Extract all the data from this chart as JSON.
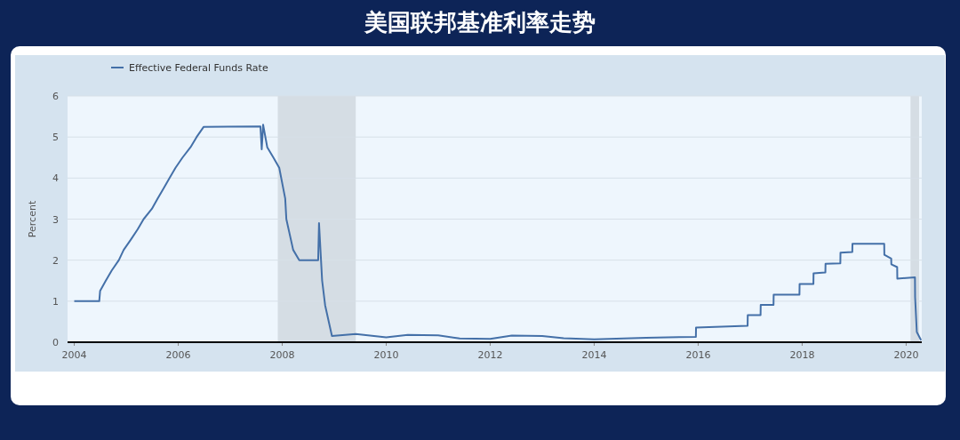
{
  "chart_data": {
    "type": "line",
    "title": "美国联邦基准利率走势",
    "ylabel": "Percent",
    "xlim": [
      "2003-11-15",
      "2020-04-20"
    ],
    "xticks": [
      "2004",
      "2006",
      "2008",
      "2010",
      "2012",
      "2014",
      "2016",
      "2018",
      "2020"
    ],
    "ylim": [
      0,
      6
    ],
    "yticks": [
      0,
      1,
      2,
      3,
      4,
      5,
      6
    ],
    "grid": "y",
    "legend": "top left",
    "bands": [
      {
        "axis": "x",
        "from": "2007-12-01",
        "to": "2009-06-01",
        "color": "#d5dde4"
      },
      {
        "axis": "x",
        "from": "2020-02-01",
        "to": "2020-04-01",
        "color": "#d5dde4"
      }
    ],
    "series": [
      {
        "name": "Effective Federal Funds Rate",
        "color": "#4470a8",
        "x": [
          "2004-01-01",
          "2004-06-25",
          "2004-07-01",
          "2004-08-10",
          "2004-09-21",
          "2004-11-10",
          "2004-12-14",
          "2005-02-02",
          "2005-03-22",
          "2005-05-03",
          "2005-06-30",
          "2005-08-09",
          "2005-09-20",
          "2005-11-01",
          "2005-12-13",
          "2006-01-31",
          "2006-03-28",
          "2006-05-10",
          "2006-06-29",
          "2007-08-01",
          "2007-08-10",
          "2007-08-20",
          "2007-09-18",
          "2007-10-31",
          "2007-12-11",
          "2008-01-22",
          "2008-01-30",
          "2008-03-18",
          "2008-04-30",
          "2008-09-10",
          "2008-09-16",
          "2008-10-08",
          "2008-10-29",
          "2008-12-16",
          "2009-06-01",
          "2010-01-01",
          "2010-06-01",
          "2011-01-01",
          "2011-06-01",
          "2012-01-01",
          "2012-06-01",
          "2013-01-01",
          "2013-06-01",
          "2014-01-01",
          "2015-01-01",
          "2015-12-16",
          "2015-12-17",
          "2016-12-14",
          "2016-12-15",
          "2017-03-15",
          "2017-03-16",
          "2017-06-14",
          "2017-06-15",
          "2017-12-13",
          "2017-12-14",
          "2018-03-21",
          "2018-03-22",
          "2018-06-13",
          "2018-06-14",
          "2018-09-26",
          "2018-09-27",
          "2018-12-19",
          "2018-12-20",
          "2019-07-31",
          "2019-08-01",
          "2019-09-18",
          "2019-09-19",
          "2019-10-30",
          "2019-10-31",
          "2020-03-03",
          "2020-03-04",
          "2020-03-16",
          "2020-04-15"
        ],
        "values": [
          1.0,
          1.0,
          1.25,
          1.5,
          1.75,
          2.0,
          2.25,
          2.5,
          2.75,
          3.0,
          3.25,
          3.5,
          3.75,
          4.0,
          4.25,
          4.5,
          4.75,
          5.0,
          5.25,
          5.26,
          4.7,
          5.3,
          4.75,
          4.5,
          4.25,
          3.5,
          3.0,
          2.25,
          2.0,
          2.0,
          2.9,
          1.5,
          0.9,
          0.15,
          0.2,
          0.12,
          0.18,
          0.17,
          0.09,
          0.08,
          0.16,
          0.15,
          0.1,
          0.07,
          0.11,
          0.13,
          0.36,
          0.4,
          0.66,
          0.66,
          0.91,
          0.91,
          1.16,
          1.16,
          1.42,
          1.42,
          1.68,
          1.7,
          1.91,
          1.92,
          2.18,
          2.2,
          2.4,
          2.4,
          2.13,
          2.04,
          1.9,
          1.83,
          1.55,
          1.58,
          1.1,
          0.25,
          0.05
        ]
      }
    ]
  }
}
